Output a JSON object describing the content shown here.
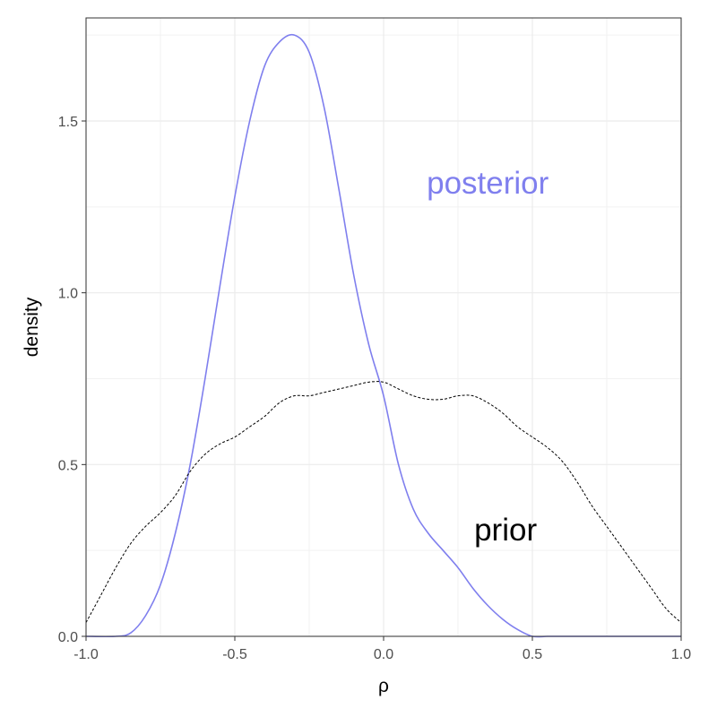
{
  "chart_data": {
    "type": "line",
    "title": "",
    "xlabel": "ρ",
    "ylabel": "density",
    "xlim": [
      -1.0,
      1.0
    ],
    "ylim": [
      0.0,
      1.75
    ],
    "x_ticks": [
      -1.0,
      -0.5,
      0.0,
      0.5,
      1.0
    ],
    "x_tick_labels": [
      "-1.0",
      "-0.5",
      "0.0",
      "0.5",
      "1.0"
    ],
    "y_ticks": [
      0.0,
      0.5,
      1.0,
      1.5
    ],
    "y_tick_labels": [
      "0.0",
      "0.5",
      "1.0",
      "1.5"
    ],
    "grid": true,
    "legend": "none",
    "series": [
      {
        "name": "posterior",
        "color": "#7f7fee",
        "line_style": "solid",
        "x": [
          -1.0,
          -0.9,
          -0.85,
          -0.8,
          -0.75,
          -0.7,
          -0.65,
          -0.6,
          -0.55,
          -0.5,
          -0.45,
          -0.4,
          -0.35,
          -0.3,
          -0.25,
          -0.2,
          -0.15,
          -0.1,
          -0.05,
          0.0,
          0.05,
          0.1,
          0.15,
          0.2,
          0.25,
          0.3,
          0.35,
          0.4,
          0.45,
          0.5,
          0.55,
          0.6,
          0.7,
          0.8,
          0.9,
          1.0
        ],
        "y": [
          0.0,
          0.0,
          0.01,
          0.06,
          0.15,
          0.3,
          0.5,
          0.75,
          1.02,
          1.28,
          1.5,
          1.66,
          1.73,
          1.75,
          1.7,
          1.54,
          1.3,
          1.05,
          0.85,
          0.7,
          0.5,
          0.37,
          0.3,
          0.25,
          0.2,
          0.14,
          0.09,
          0.05,
          0.02,
          0.0,
          0.0,
          0.0,
          0.0,
          0.0,
          0.0,
          0.0
        ]
      },
      {
        "name": "prior",
        "color": "#000000",
        "line_style": "dashed",
        "x": [
          -1.0,
          -0.95,
          -0.9,
          -0.85,
          -0.8,
          -0.75,
          -0.7,
          -0.65,
          -0.6,
          -0.55,
          -0.5,
          -0.45,
          -0.4,
          -0.35,
          -0.3,
          -0.25,
          -0.2,
          -0.15,
          -0.1,
          -0.05,
          0.0,
          0.05,
          0.1,
          0.15,
          0.2,
          0.25,
          0.3,
          0.35,
          0.4,
          0.45,
          0.5,
          0.55,
          0.6,
          0.65,
          0.7,
          0.75,
          0.8,
          0.85,
          0.9,
          0.95,
          1.0
        ],
        "y": [
          0.04,
          0.12,
          0.2,
          0.27,
          0.32,
          0.36,
          0.41,
          0.48,
          0.53,
          0.56,
          0.58,
          0.61,
          0.64,
          0.68,
          0.7,
          0.7,
          0.71,
          0.72,
          0.73,
          0.74,
          0.74,
          0.72,
          0.7,
          0.69,
          0.69,
          0.7,
          0.7,
          0.68,
          0.65,
          0.61,
          0.58,
          0.55,
          0.51,
          0.45,
          0.38,
          0.32,
          0.26,
          0.2,
          0.14,
          0.08,
          0.04
        ]
      }
    ],
    "annotations": [
      {
        "text": "posterior",
        "x": 0.35,
        "y": 1.32,
        "color": "#7f7fee"
      },
      {
        "text": "prior",
        "x": 0.41,
        "y": 0.31,
        "color": "#000000"
      }
    ]
  }
}
